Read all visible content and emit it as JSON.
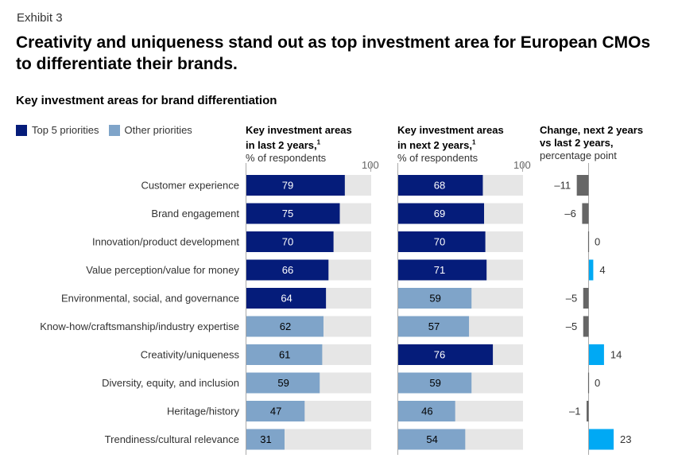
{
  "header": {
    "exhibit": "Exhibit 3",
    "title": "Creativity and uniqueness stand out as top investment area for European CMOs to differentiate their brands.",
    "subtitle": "Key investment areas for brand differentiation"
  },
  "legend": {
    "items": [
      {
        "label": "Top 5 priorities",
        "color": "#051c7a"
      },
      {
        "label": "Other priorities",
        "color": "#7fa4c9"
      }
    ]
  },
  "columns": [
    {
      "title_line1": "Key investment areas",
      "title_line2": "in last 2 years,",
      "footnote": "1",
      "unit": "% of respondents",
      "max_label": "100"
    },
    {
      "title_line1": "Key investment areas",
      "title_line2": "in next 2 years,",
      "footnote": "1",
      "unit": "% of respondents",
      "max_label": "100"
    },
    {
      "title_line1": "Change, next 2 years",
      "title_line2": "vs last 2 years,",
      "footnote": "",
      "unit": "percentage point",
      "max_label": ""
    }
  ],
  "colors": {
    "top5": "#051c7a",
    "other": "#7fa4c9",
    "track": "#e6e6e6",
    "positive": "#00a9f4",
    "negative": "#666666",
    "axis": "#aaaaaa"
  },
  "chart_data": {
    "type": "bar",
    "title": "Key investment areas for brand differentiation",
    "categories": [
      "Customer experience",
      "Brand engagement",
      "Innovation/product development",
      "Value perception/value for money",
      "Environmental, social, and governance",
      "Know-how/craftsmanship/industry expertise",
      "Creativity/uniqueness",
      "Diversity, equity, and inclusion",
      "Heritage/history",
      "Trendiness/cultural relevance"
    ],
    "series": [
      {
        "name": "Key investment areas in last 2 years, % of respondents",
        "values": [
          79,
          75,
          70,
          66,
          64,
          62,
          61,
          59,
          47,
          31
        ],
        "top5": [
          true,
          true,
          true,
          true,
          true,
          false,
          false,
          false,
          false,
          false
        ],
        "xlim": [
          0,
          100
        ]
      },
      {
        "name": "Key investment areas in next 2 years, % of respondents",
        "values": [
          68,
          69,
          70,
          71,
          59,
          57,
          76,
          59,
          46,
          54
        ],
        "top5": [
          true,
          true,
          true,
          true,
          false,
          false,
          true,
          false,
          false,
          false
        ],
        "xlim": [
          0,
          100
        ]
      },
      {
        "name": "Change, next 2 years vs last 2 years, percentage point",
        "values": [
          -11,
          -6,
          0,
          4,
          -5,
          -5,
          14,
          0,
          -1,
          23
        ],
        "value_labels": [
          "–11",
          "–6",
          "0",
          "4",
          "–5",
          "–5",
          "14",
          "0",
          "–1",
          "23"
        ]
      }
    ],
    "legend": [
      "Top 5 priorities",
      "Other priorities"
    ],
    "legend_position": "top-left",
    "grid": false
  }
}
